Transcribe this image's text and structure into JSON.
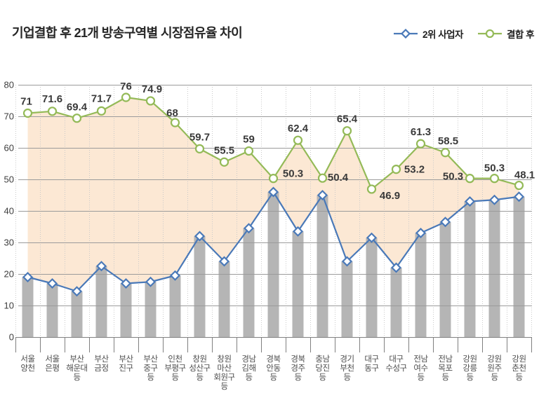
{
  "title": "기업결합 후 21개 방송구역별 시장점유율 차이",
  "legend": [
    {
      "label": "2위 사업자",
      "marker": "diamond",
      "color": "#4a79b8"
    },
    {
      "label": "결합 후",
      "marker": "circle",
      "color": "#94ba58"
    }
  ],
  "colors": {
    "bar": "#b5b5b5",
    "area_fill": "#fce8d4",
    "gridline": "#9b9b9b",
    "grid_dotted": "#c9c9c9",
    "axis": "#808080",
    "tick_label": "#3d3d3d",
    "category_label": "#4d4d4d",
    "data_label": "#3a3a3a",
    "title_text": "#262626"
  },
  "chart_data": {
    "type": "line",
    "title": "기업결합 후 21개 방송구역별 시장점유율 차이",
    "categories": [
      "서울 양천",
      "서울 은평",
      "부산 해운대 등",
      "부산 금정",
      "부산 진구",
      "부산 중구 등",
      "인천 부평구 등",
      "창원 성산구 등",
      "창원 마산 회원구 등",
      "경남 김해 등",
      "경북 안동 등",
      "경북 경주 등",
      "충남 당진 등",
      "경기 부천 등",
      "대구 동구",
      "대구 수성구",
      "전남 여수 등",
      "전남 목포 등",
      "강원 강릉 등",
      "강원 원주 등",
      "강원 춘천 등"
    ],
    "category_label_lines": [
      [
        "서울",
        "양천"
      ],
      [
        "서울",
        "은평"
      ],
      [
        "부산",
        "해운대",
        "등"
      ],
      [
        "부산",
        "금정"
      ],
      [
        "부산",
        "진구"
      ],
      [
        "부산",
        "중구",
        "등"
      ],
      [
        "인천",
        "부평구",
        "등"
      ],
      [
        "창원",
        "성산구",
        "등"
      ],
      [
        "창원",
        "마산",
        "회원구",
        "등"
      ],
      [
        "경남",
        "김해",
        "등"
      ],
      [
        "경북",
        "안동",
        "등"
      ],
      [
        "경북",
        "경주",
        "등"
      ],
      [
        "충남",
        "당진",
        "등"
      ],
      [
        "경기",
        "부천",
        "등"
      ],
      [
        "대구",
        "동구"
      ],
      [
        "대구",
        "수성구"
      ],
      [
        "전남",
        "여수",
        "등"
      ],
      [
        "전남",
        "목포",
        "등"
      ],
      [
        "강원",
        "강릉",
        "등"
      ],
      [
        "강원",
        "원주",
        "등"
      ],
      [
        "강원",
        "춘천",
        "등"
      ]
    ],
    "series": [
      {
        "name": "2위 사업자",
        "marker": "diamond",
        "color": "#4a79b8",
        "bars": true,
        "bar_color": "#b5b5b5",
        "data_labels": false,
        "values": [
          19,
          17,
          14.5,
          22.5,
          17,
          17.5,
          19.5,
          32,
          24,
          34.5,
          46,
          33.5,
          45,
          24,
          31.5,
          22,
          33,
          36.5,
          43,
          43.5,
          44.5
        ]
      },
      {
        "name": "결합 후",
        "marker": "circle",
        "color": "#94ba58",
        "bars": false,
        "data_labels": true,
        "values": [
          71,
          71.6,
          69.4,
          71.7,
          76,
          74.9,
          68,
          59.7,
          55.5,
          59,
          50.3,
          62.4,
          50.4,
          65.4,
          46.9,
          53.2,
          61.3,
          58.5,
          50.3,
          50.3,
          48.1
        ]
      }
    ],
    "fill_between": {
      "upper": "결합 후",
      "lower": "2위 사업자",
      "color": "#fce8d4"
    },
    "ylim": [
      0,
      80
    ],
    "yticks": [
      0,
      10,
      20,
      30,
      40,
      50,
      60,
      70,
      80
    ],
    "grid": {
      "horizontal": "solid",
      "vertical": "dotted"
    },
    "legend_position": "top-right"
  }
}
